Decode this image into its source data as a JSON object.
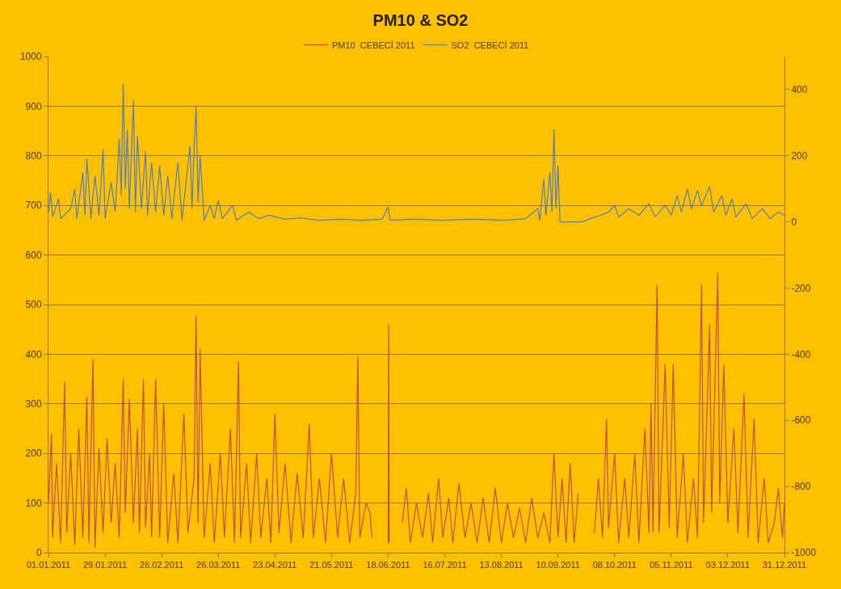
{
  "chart_data": {
    "type": "line",
    "title": "PM10 & SO2",
    "legend": "top",
    "grid": "y",
    "marker": "none",
    "line_style": "solid",
    "xlim": [
      "2011-01-01",
      "2011-12-31"
    ],
    "xticks": [
      {
        "value": "2011-01-01",
        "label": "01.01.2011"
      },
      {
        "value": "2011-01-29",
        "label": "29.01.2011"
      },
      {
        "value": "2011-02-26",
        "label": "26.02.2011"
      },
      {
        "value": "2011-03-26",
        "label": "26.03.2011"
      },
      {
        "value": "2011-04-23",
        "label": "23.04.2011"
      },
      {
        "value": "2011-05-21",
        "label": "21.05.2011"
      },
      {
        "value": "2011-06-18",
        "label": "18.06.2011"
      },
      {
        "value": "2011-07-16",
        "label": "16.07.2011"
      },
      {
        "value": "2011-08-13",
        "label": "13.08.2011"
      },
      {
        "value": "2011-09-10",
        "label": "10.09.2011"
      },
      {
        "value": "2011-10-08",
        "label": "08.10.2011"
      },
      {
        "value": "2011-11-05",
        "label": "05.11.2011"
      },
      {
        "value": "2011-12-03",
        "label": "03.12.2011"
      },
      {
        "value": "2011-12-31",
        "label": "31.12.2011"
      }
    ],
    "ylim": [
      0,
      1000
    ],
    "yticks": [
      0,
      100,
      200,
      300,
      400,
      500,
      600,
      700,
      800,
      900,
      1000
    ],
    "y2lim": [
      -1000,
      500
    ],
    "y2ticks": [
      -1000,
      -800,
      -600,
      -400,
      -200,
      0,
      200,
      400
    ],
    "series": [
      {
        "name": "PM10  CEBECİ 2011",
        "color": "#c0504d",
        "x": [
          "2011-01-01",
          "2011-01-02T12:00",
          "2011-01-03",
          "2011-01-05",
          "2011-01-07",
          "2011-01-09",
          "2011-01-10",
          "2011-01-12",
          "2011-01-14",
          "2011-01-16",
          "2011-01-18",
          "2011-01-20",
          "2011-01-21",
          "2011-01-23",
          "2011-01-24",
          "2011-01-26",
          "2011-01-28",
          "2011-01-30",
          "2011-02-01",
          "2011-02-03",
          "2011-02-05",
          "2011-02-07",
          "2011-02-08",
          "2011-02-10",
          "2011-02-12",
          "2011-02-14",
          "2011-02-15",
          "2011-02-17",
          "2011-02-18",
          "2011-02-20",
          "2011-02-21",
          "2011-02-23",
          "2011-02-25",
          "2011-02-27",
          "2011-03-01",
          "2011-03-04",
          "2011-03-06",
          "2011-03-09",
          "2011-03-11",
          "2011-03-14",
          "2011-03-15",
          "2011-03-16",
          "2011-03-17",
          "2011-03-19",
          "2011-03-22",
          "2011-03-24",
          "2011-03-27",
          "2011-03-29",
          "2011-04-01",
          "2011-04-03",
          "2011-04-05",
          "2011-04-06",
          "2011-04-09",
          "2011-04-11",
          "2011-04-14",
          "2011-04-16",
          "2011-04-19",
          "2011-04-21",
          "2011-04-23",
          "2011-04-25",
          "2011-04-28",
          "2011-05-01",
          "2011-05-04",
          "2011-05-07",
          "2011-05-10",
          "2011-05-12",
          "2011-05-15",
          "2011-05-18",
          "2011-05-21",
          "2011-05-24",
          "2011-05-27",
          "2011-05-30",
          "2011-06-02",
          "2011-06-03",
          "2011-06-04",
          "2011-06-07",
          "2011-06-09",
          "2011-06-10",
          "2011-06-14",
          "2011-06-18T00:00",
          "2011-06-18T06:00",
          "2011-06-18T12:00",
          "2011-06-21",
          "2011-06-25",
          "2011-06-27",
          "2011-06-29",
          "2011-07-02",
          "2011-07-05",
          "2011-07-08",
          "2011-07-10",
          "2011-07-13",
          "2011-07-15",
          "2011-07-18",
          "2011-07-20",
          "2011-07-23",
          "2011-07-26",
          "2011-07-29",
          "2011-08-01",
          "2011-08-04",
          "2011-08-07",
          "2011-08-10",
          "2011-08-13",
          "2011-08-16",
          "2011-08-19",
          "2011-08-22",
          "2011-08-25",
          "2011-08-28",
          "2011-08-31",
          "2011-09-03",
          "2011-09-06",
          "2011-09-08",
          "2011-09-10",
          "2011-09-12",
          "2011-09-14",
          "2011-09-16",
          "2011-09-18",
          "2011-09-20",
          "2011-09-24",
          "2011-09-28",
          "2011-09-30",
          "2011-10-02",
          "2011-10-04",
          "2011-10-05",
          "2011-10-08",
          "2011-10-10",
          "2011-10-13",
          "2011-10-15",
          "2011-10-18",
          "2011-10-20",
          "2011-10-23",
          "2011-10-25",
          "2011-10-26",
          "2011-10-27",
          "2011-10-29",
          "2011-10-30",
          "2011-11-02",
          "2011-11-04",
          "2011-11-06",
          "2011-11-08",
          "2011-11-11",
          "2011-11-13",
          "2011-11-16",
          "2011-11-18",
          "2011-11-20",
          "2011-11-21",
          "2011-11-24",
          "2011-11-25",
          "2011-11-28",
          "2011-11-29",
          "2011-12-01",
          "2011-12-03",
          "2011-12-06",
          "2011-12-08",
          "2011-12-11",
          "2011-12-13",
          "2011-12-16",
          "2011-12-18",
          "2011-12-21",
          "2011-12-23",
          "2011-12-26",
          "2011-12-28",
          "2011-12-30",
          "2011-12-31"
        ],
        "values": [
          100,
          240,
          30,
          180,
          20,
          345,
          40,
          200,
          15,
          250,
          30,
          315,
          20,
          390,
          10,
          210,
          40,
          230,
          60,
          180,
          30,
          350,
          80,
          310,
          60,
          250,
          40,
          350,
          50,
          200,
          30,
          350,
          30,
          300,
          20,
          160,
          20,
          280,
          40,
          150,
          478,
          60,
          410,
          30,
          180,
          20,
          200,
          30,
          250,
          20,
          385,
          30,
          180,
          20,
          200,
          30,
          150,
          20,
          280,
          40,
          180,
          20,
          160,
          30,
          260,
          30,
          150,
          20,
          200,
          30,
          150,
          20,
          120,
          395,
          30,
          100,
          80,
          30,
          null,
          20,
          460,
          20,
          null,
          60,
          130,
          20,
          100,
          30,
          120,
          20,
          150,
          30,
          110,
          20,
          140,
          30,
          100,
          20,
          110,
          20,
          130,
          20,
          100,
          30,
          90,
          20,
          110,
          30,
          80,
          20,
          200,
          30,
          150,
          20,
          180,
          20,
          120,
          null,
          40,
          150,
          30,
          270,
          50,
          200,
          20,
          150,
          30,
          200,
          20,
          250,
          40,
          300,
          40,
          540,
          40,
          380,
          50,
          380,
          30,
          200,
          20,
          150,
          30,
          540,
          60,
          460,
          80,
          563,
          100,
          380,
          60,
          250,
          40,
          320,
          30,
          270,
          20,
          150,
          20,
          60,
          130,
          30,
          100
        ]
      },
      {
        "name": "SO2  CEBECİ 2011",
        "color": "#4f81bd",
        "axis": "y2",
        "x": [
          "2011-01-01",
          "2011-01-02",
          "2011-01-03",
          "2011-01-06",
          "2011-01-07",
          "2011-01-12",
          "2011-01-14",
          "2011-01-15",
          "2011-01-18",
          "2011-01-19",
          "2011-01-20",
          "2011-01-22",
          "2011-01-24",
          "2011-01-26",
          "2011-01-28",
          "2011-01-29",
          "2011-02-01",
          "2011-02-03",
          "2011-02-05",
          "2011-02-06",
          "2011-02-07",
          "2011-02-08",
          "2011-02-09",
          "2011-02-10",
          "2011-02-12",
          "2011-02-13",
          "2011-02-14",
          "2011-02-16",
          "2011-02-18",
          "2011-02-19",
          "2011-02-21",
          "2011-02-23",
          "2011-02-25",
          "2011-02-27",
          "2011-03-01",
          "2011-03-03",
          "2011-03-06",
          "2011-03-08",
          "2011-03-12",
          "2011-03-13",
          "2011-03-14",
          "2011-03-15",
          "2011-03-16",
          "2011-03-17",
          "2011-03-19",
          "2011-03-22",
          "2011-03-24",
          "2011-03-26",
          "2011-03-28",
          "2011-04-02",
          "2011-04-04",
          "2011-04-10",
          "2011-04-15",
          "2011-04-20",
          "2011-04-28",
          "2011-05-05",
          "2011-05-15",
          "2011-05-25",
          "2011-06-05",
          "2011-06-15",
          "2011-06-18",
          "2011-06-19",
          "2011-06-30",
          "2011-07-15",
          "2011-07-30",
          "2011-08-15",
          "2011-08-25",
          "2011-08-31",
          "2011-09-01",
          "2011-09-03",
          "2011-09-04",
          "2011-09-06",
          "2011-09-07",
          "2011-09-08",
          "2011-09-09",
          "2011-09-10",
          "2011-09-11",
          "2011-09-22",
          "2011-09-26",
          "2011-10-01",
          "2011-10-05",
          "2011-10-08",
          "2011-10-10",
          "2011-10-15",
          "2011-10-20",
          "2011-10-25",
          "2011-10-28",
          "2011-11-02",
          "2011-11-05",
          "2011-11-08",
          "2011-11-10",
          "2011-11-13",
          "2011-11-15",
          "2011-11-18",
          "2011-11-20",
          "2011-11-24",
          "2011-11-26",
          "2011-11-30",
          "2011-12-02",
          "2011-12-05",
          "2011-12-07",
          "2011-12-12",
          "2011-12-15",
          "2011-12-20",
          "2011-12-24",
          "2011-12-28",
          "2011-12-31"
        ],
        "values": [
          30,
          90,
          15,
          70,
          10,
          40,
          100,
          10,
          150,
          20,
          190,
          10,
          140,
          20,
          220,
          10,
          120,
          30,
          250,
          80,
          417,
          100,
          280,
          40,
          368,
          30,
          260,
          40,
          215,
          20,
          180,
          30,
          170,
          20,
          140,
          10,
          180,
          5,
          230,
          40,
          220,
          350,
          60,
          200,
          5,
          50,
          10,
          65,
          10,
          50,
          5,
          30,
          10,
          20,
          8,
          12,
          5,
          8,
          5,
          8,
          45,
          5,
          8,
          5,
          8,
          5,
          10,
          40,
          5,
          130,
          20,
          150,
          30,
          280,
          40,
          170,
          0,
          0,
          10,
          20,
          30,
          50,
          15,
          40,
          20,
          55,
          15,
          50,
          20,
          80,
          30,
          100,
          40,
          95,
          50,
          107,
          30,
          80,
          20,
          70,
          15,
          55,
          10,
          40,
          10,
          30,
          20
        ]
      }
    ]
  }
}
